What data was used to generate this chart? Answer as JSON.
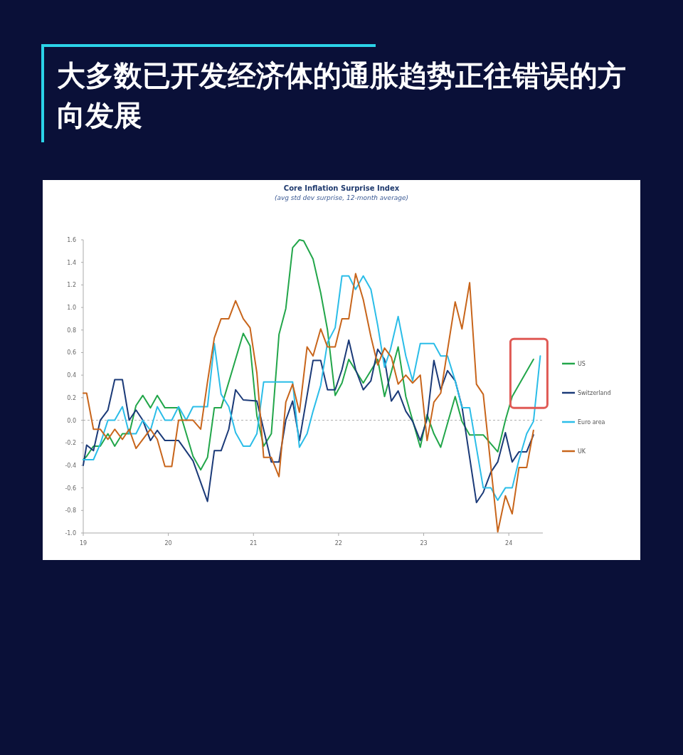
{
  "chart_data": {
    "type": "line",
    "title": "大多数已开发经济体的通胀趋势正往错误的方向发展",
    "subtitle": "Core Inflation Surprise Index",
    "annotations": [
      "(avg std dev surprise, 12-month average)"
    ],
    "xlim": [
      19,
      24.4
    ],
    "xticks": [
      19,
      20,
      21,
      22,
      23,
      24
    ],
    "ylim": [
      -1.0,
      1.6
    ],
    "yticks": [
      {
        "value": 1.6,
        "label": "1.6"
      },
      {
        "value": 1.4,
        "label": "1.4"
      },
      {
        "value": 1.2,
        "label": "1.2"
      },
      {
        "value": 1.0,
        "label": "1.0"
      },
      {
        "value": 0.8,
        "label": "0.8"
      },
      {
        "value": 0.6,
        "label": "0.6"
      },
      {
        "value": 0.4,
        "label": "0.4"
      },
      {
        "value": 0.2,
        "label": "0.2"
      },
      {
        "value": 0,
        "label": "0.0"
      },
      {
        "value": -0.2,
        "label": "-0.2"
      },
      {
        "value": -0.4,
        "label": "-0.4"
      },
      {
        "value": -0.6,
        "label": "-0.6"
      },
      {
        "value": -0.8,
        "label": "-0.8"
      },
      {
        "value": -1.0,
        "label": "-1.0"
      }
    ],
    "ref_lines": [
      {
        "axis": "y",
        "value": 0,
        "color": "#999999",
        "line_style": "dashed"
      }
    ],
    "legend": "right",
    "series": [
      {
        "name": "US",
        "color": "#22a64a",
        "x": [
          19.0,
          19.04,
          19.12,
          19.2,
          19.29,
          19.37,
          19.46,
          19.54,
          19.62,
          19.7,
          19.79,
          19.87,
          19.96,
          20.12,
          20.29,
          20.38,
          20.46,
          20.54,
          20.62,
          20.88,
          20.96,
          21.04,
          21.12,
          21.21,
          21.3,
          21.38,
          21.46,
          21.54,
          21.59,
          21.7,
          21.79,
          21.87,
          21.96,
          22.04,
          22.12,
          22.2,
          22.29,
          22.38,
          22.46,
          22.54,
          22.7,
          22.79,
          22.96,
          23.04,
          23.12,
          23.2,
          23.37,
          23.45,
          23.54,
          23.7,
          23.87,
          23.96,
          24.04,
          24.29
        ],
        "values": [
          -0.35,
          -0.32,
          -0.23,
          -0.23,
          -0.12,
          -0.23,
          -0.12,
          -0.12,
          0.13,
          0.22,
          0.11,
          0.22,
          0.11,
          0.11,
          -0.32,
          -0.44,
          -0.33,
          0.11,
          0.11,
          0.77,
          0.66,
          0.04,
          -0.23,
          -0.12,
          0.76,
          0.99,
          1.53,
          1.6,
          1.59,
          1.43,
          1.13,
          0.8,
          0.22,
          0.33,
          0.54,
          0.44,
          0.33,
          0.44,
          0.54,
          0.21,
          0.65,
          0.21,
          -0.24,
          0.05,
          -0.12,
          -0.24,
          0.21,
          -0.01,
          -0.13,
          -0.13,
          -0.28,
          0.0,
          0.21,
          0.54
        ]
      },
      {
        "name": "Switzerland",
        "color": "#1b3a78",
        "x": [
          19.0,
          19.04,
          19.12,
          19.2,
          19.29,
          19.37,
          19.46,
          19.54,
          19.62,
          19.7,
          19.79,
          19.87,
          19.96,
          20.12,
          20.29,
          20.46,
          20.54,
          20.62,
          20.71,
          20.79,
          20.88,
          21.04,
          21.21,
          21.3,
          21.38,
          21.46,
          21.54,
          21.7,
          21.79,
          21.87,
          21.96,
          22.04,
          22.12,
          22.2,
          22.29,
          22.38,
          22.46,
          22.54,
          22.62,
          22.7,
          22.79,
          22.87,
          22.96,
          23.04,
          23.12,
          23.2,
          23.28,
          23.37,
          23.45,
          23.62,
          23.7,
          23.79,
          23.87,
          23.96,
          24.04,
          24.12,
          24.21,
          24.29
        ],
        "values": [
          -0.4,
          -0.22,
          -0.27,
          0.0,
          0.09,
          0.36,
          0.36,
          0.0,
          0.09,
          0.0,
          -0.18,
          -0.09,
          -0.18,
          -0.18,
          -0.36,
          -0.72,
          -0.27,
          -0.27,
          -0.08,
          0.27,
          0.18,
          0.17,
          -0.37,
          -0.37,
          0.0,
          0.17,
          -0.18,
          0.53,
          0.53,
          0.27,
          0.27,
          0.45,
          0.71,
          0.45,
          0.27,
          0.35,
          0.63,
          0.54,
          0.17,
          0.26,
          0.08,
          -0.01,
          -0.18,
          0.01,
          0.53,
          0.27,
          0.44,
          0.35,
          0.12,
          -0.73,
          -0.64,
          -0.46,
          -0.37,
          -0.11,
          -0.37,
          -0.28,
          -0.28,
          -0.13
        ]
      },
      {
        "name": "Euro area",
        "color": "#2bbde8",
        "x": [
          19.0,
          19.12,
          19.2,
          19.29,
          19.37,
          19.46,
          19.54,
          19.62,
          19.7,
          19.79,
          19.87,
          19.96,
          20.04,
          20.12,
          20.21,
          20.29,
          20.46,
          20.54,
          20.62,
          20.71,
          20.79,
          20.88,
          20.96,
          21.04,
          21.12,
          21.46,
          21.54,
          21.63,
          21.7,
          21.79,
          21.87,
          21.96,
          22.04,
          22.12,
          22.2,
          22.29,
          22.38,
          22.46,
          22.54,
          22.61,
          22.7,
          22.79,
          22.87,
          22.96,
          23.12,
          23.2,
          23.28,
          23.37,
          23.45,
          23.54,
          23.7,
          23.79,
          23.87,
          23.96,
          24.04,
          24.12,
          24.21,
          24.29,
          24.37
        ],
        "values": [
          -0.35,
          -0.35,
          -0.21,
          0.0,
          0.0,
          0.12,
          -0.12,
          -0.12,
          0.0,
          -0.09,
          0.12,
          0.0,
          0.0,
          0.12,
          0.0,
          0.12,
          0.12,
          0.68,
          0.23,
          0.12,
          -0.11,
          -0.23,
          -0.23,
          -0.12,
          0.34,
          0.34,
          -0.24,
          -0.12,
          0.08,
          0.31,
          0.69,
          0.82,
          1.28,
          1.28,
          1.16,
          1.28,
          1.16,
          0.84,
          0.47,
          0.63,
          0.92,
          0.57,
          0.35,
          0.68,
          0.68,
          0.57,
          0.57,
          0.35,
          0.11,
          0.11,
          -0.6,
          -0.6,
          -0.71,
          -0.6,
          -0.6,
          -0.35,
          -0.12,
          -0.01,
          0.57
        ]
      },
      {
        "name": "UK",
        "color": "#c8651b",
        "x": [
          19.0,
          19.04,
          19.12,
          19.2,
          19.29,
          19.37,
          19.46,
          19.54,
          19.62,
          19.79,
          19.87,
          19.96,
          20.04,
          20.12,
          20.29,
          20.38,
          20.46,
          20.54,
          20.62,
          20.71,
          20.79,
          20.88,
          20.96,
          21.04,
          21.12,
          21.21,
          21.3,
          21.38,
          21.46,
          21.54,
          21.63,
          21.7,
          21.79,
          21.87,
          21.96,
          22.04,
          22.12,
          22.2,
          22.29,
          22.38,
          22.46,
          22.54,
          22.62,
          22.7,
          22.79,
          22.87,
          22.96,
          23.04,
          23.12,
          23.2,
          23.37,
          23.45,
          23.54,
          23.62,
          23.7,
          23.87,
          23.96,
          24.04,
          24.12,
          24.21,
          24.29
        ],
        "values": [
          0.24,
          0.24,
          -0.08,
          -0.08,
          -0.17,
          -0.08,
          -0.17,
          -0.08,
          -0.25,
          -0.08,
          -0.17,
          -0.41,
          -0.41,
          0.0,
          0.0,
          -0.08,
          0.34,
          0.73,
          0.9,
          0.9,
          1.06,
          0.9,
          0.82,
          0.42,
          -0.33,
          -0.33,
          -0.5,
          0.16,
          0.32,
          0.07,
          0.65,
          0.57,
          0.81,
          0.65,
          0.65,
          0.9,
          0.9,
          1.3,
          1.07,
          0.74,
          0.49,
          0.64,
          0.56,
          0.32,
          0.4,
          0.33,
          0.4,
          -0.18,
          0.16,
          0.24,
          1.05,
          0.81,
          1.22,
          0.32,
          0.23,
          -0.99,
          -0.67,
          -0.83,
          -0.42,
          -0.42,
          -0.09
        ]
      }
    ]
  }
}
